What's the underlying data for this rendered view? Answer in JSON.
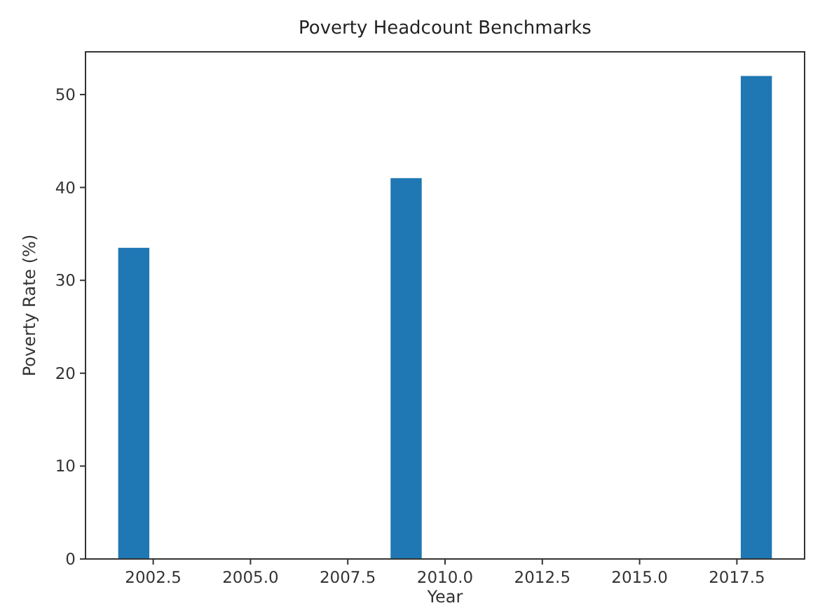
{
  "chart_data": {
    "type": "bar",
    "title": "Poverty Headcount Benchmarks",
    "xlabel": "Year",
    "ylabel": "Poverty Rate (%)",
    "x": [
      2002,
      2009,
      2018
    ],
    "values": [
      33.5,
      41.0,
      52.0
    ],
    "color": "#1f77b4",
    "xlim": [
      2000.76,
      2019.24
    ],
    "xticks": [
      {
        "value": 2002.5,
        "label": "2002.5"
      },
      {
        "value": 2005,
        "label": "2005.0"
      },
      {
        "value": 2007.5,
        "label": "2007.5"
      },
      {
        "value": 2010,
        "label": "2010.0"
      },
      {
        "value": 2012.5,
        "label": "2012.5"
      },
      {
        "value": 2015,
        "label": "2015.0"
      },
      {
        "value": 2017.5,
        "label": "2017.5"
      }
    ],
    "ylim": [
      0,
      54.6
    ],
    "yticks": [
      0,
      10,
      20,
      30,
      40,
      50
    ],
    "grid": false
  }
}
